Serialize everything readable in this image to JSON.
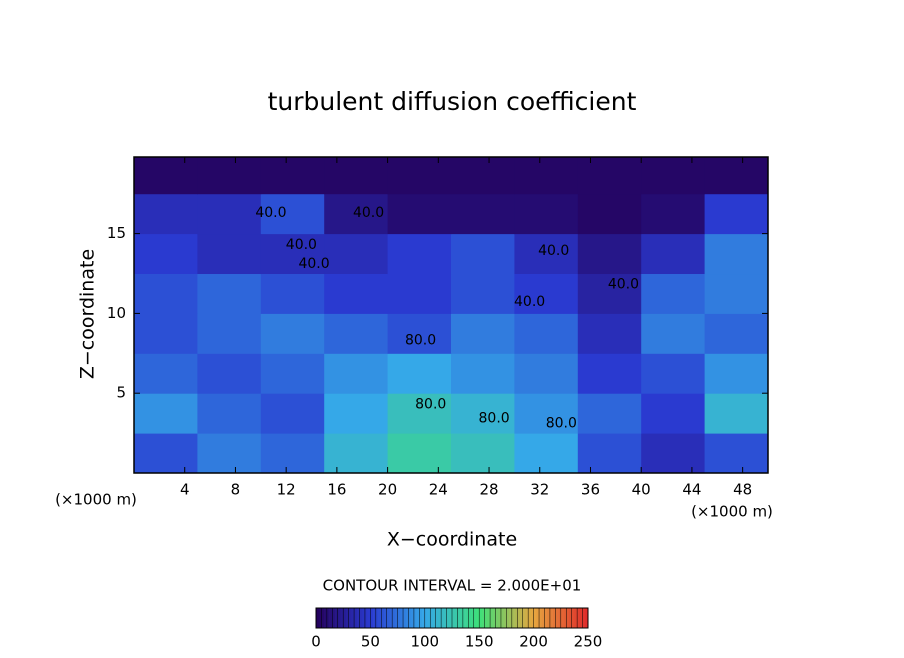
{
  "chart_data": {
    "type": "heatmap",
    "title": "turbulent diffusion coefficient",
    "xlabel": "X−coordinate",
    "ylabel": "Z−coordinate",
    "x_unit_label": "(×1000 m)",
    "note": "CONTOUR INTERVAL = 2.000E+01",
    "x_edges": [
      0,
      5,
      10,
      15,
      20,
      25,
      30,
      35,
      40,
      45,
      50
    ],
    "y_edges": [
      0,
      2.5,
      5,
      7.5,
      10,
      12.5,
      15,
      17.5,
      19.8
    ],
    "values": [
      [
        60,
        80,
        70,
        110,
        130,
        120,
        100,
        60,
        40,
        60
      ],
      [
        90,
        70,
        60,
        100,
        120,
        110,
        90,
        70,
        50,
        110
      ],
      [
        70,
        60,
        70,
        90,
        100,
        90,
        80,
        50,
        60,
        90
      ],
      [
        60,
        70,
        80,
        70,
        60,
        80,
        70,
        40,
        80,
        70
      ],
      [
        60,
        70,
        60,
        50,
        50,
        60,
        50,
        30,
        70,
        80
      ],
      [
        50,
        40,
        40,
        40,
        50,
        60,
        40,
        20,
        40,
        80
      ],
      [
        40,
        40,
        60,
        20,
        10,
        10,
        10,
        5,
        10,
        50
      ],
      [
        5,
        5,
        5,
        5,
        5,
        5,
        5,
        5,
        5,
        5
      ]
    ],
    "xlim": [
      0,
      50
    ],
    "ylim": [
      0,
      19.8
    ],
    "xticks": [
      4,
      8,
      12,
      16,
      20,
      24,
      28,
      32,
      36,
      40,
      44,
      48
    ],
    "yticks": [
      5,
      10,
      15
    ],
    "colorbar_lim": [
      0,
      250
    ],
    "colorbar_ticks": [
      0,
      50,
      100,
      150,
      200,
      250
    ],
    "colormap": [
      "#24005a",
      "#2a3ad0",
      "#35a8e8",
      "#3ee07a",
      "#e6a640",
      "#e02a2a"
    ],
    "contour_labels": [
      {
        "text": "40.0",
        "x": 14.2,
        "y": 13.1
      },
      {
        "text": "40.0",
        "x": 33.1,
        "y": 13.9
      },
      {
        "text": "40.0",
        "x": 31.2,
        "y": 10.7
      },
      {
        "text": "40.0",
        "x": 38.6,
        "y": 11.8
      },
      {
        "text": "40.0",
        "x": 10.8,
        "y": 16.3
      },
      {
        "text": "40.0",
        "x": 18.5,
        "y": 16.3
      },
      {
        "text": "40.0",
        "x": 13.2,
        "y": 14.3
      },
      {
        "text": "80.0",
        "x": 22.6,
        "y": 8.3
      },
      {
        "text": "80.0",
        "x": 28.4,
        "y": 3.4
      },
      {
        "text": "80.0",
        "x": 33.7,
        "y": 3.1
      },
      {
        "text": "80.0",
        "x": 23.4,
        "y": 4.3
      }
    ]
  }
}
